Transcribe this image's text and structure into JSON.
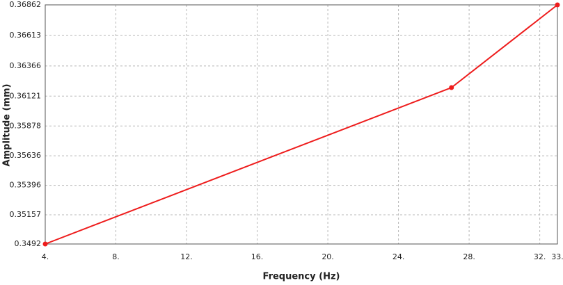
{
  "chart_data": {
    "type": "line",
    "x_label": "Frequency (Hz)",
    "y_label": "Amplitude (mm)",
    "x": [
      4,
      27,
      33
    ],
    "values": [
      0.3492,
      0.3619,
      0.36862
    ],
    "color": "#ee1c1c",
    "xlim": [
      4,
      33
    ],
    "xticks": [
      {
        "value": 4,
        "label": "4."
      },
      {
        "value": 8,
        "label": "8."
      },
      {
        "value": 12,
        "label": "12."
      },
      {
        "value": 16,
        "label": "16."
      },
      {
        "value": 20,
        "label": "20."
      },
      {
        "value": 24,
        "label": "24."
      },
      {
        "value": 28,
        "label": "28."
      },
      {
        "value": 32,
        "label": "32."
      },
      {
        "value": 33,
        "label": "33."
      }
    ],
    "ylim": [
      0.3492,
      0.36862
    ],
    "yticks": [
      0.3492,
      0.35157,
      0.35396,
      0.35636,
      0.35878,
      0.36121,
      0.36366,
      0.36613,
      0.36862
    ],
    "grid": true
  }
}
